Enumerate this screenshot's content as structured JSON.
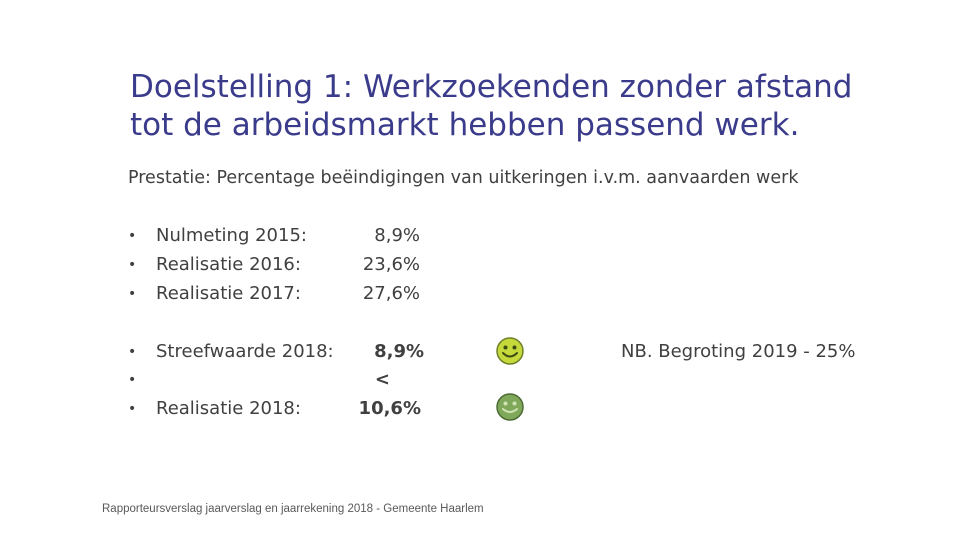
{
  "title": {
    "line1": "Doelstelling 1: Werkzoekenden zonder afstand",
    "line2": "tot de arbeidsmarkt hebben passend werk."
  },
  "subtitle": "Prestatie: Percentage beëindigingen van uitkeringen i.v.m. aanvaarden werk",
  "bullet_glyph": "•",
  "measurements": [
    {
      "label": "Nulmeting 2015:",
      "value": "8,9%"
    },
    {
      "label": "Realisatie 2016:",
      "value": "23,6%"
    },
    {
      "label": "Realisatie 2017:",
      "value": "27,6%"
    }
  ],
  "target": {
    "label": "Streefwaarde 2018:",
    "value": "8,9%",
    "comparison": "<",
    "realisation_label": "Realisatie 2018:",
    "realisation_value": "10,6%"
  },
  "note": "NB. Begroting 2019 - 25%",
  "footer": "Rapporteursverslag jaarverslag en jaarrekening 2018 - Gemeente Haarlem",
  "colors": {
    "title": "#3b3b8c",
    "text": "#404040",
    "smiley_light": "#c6d93a",
    "smiley_dark": "#7fa85a"
  },
  "icons": [
    "smiley-face-icon",
    "smiley-face-icon"
  ]
}
